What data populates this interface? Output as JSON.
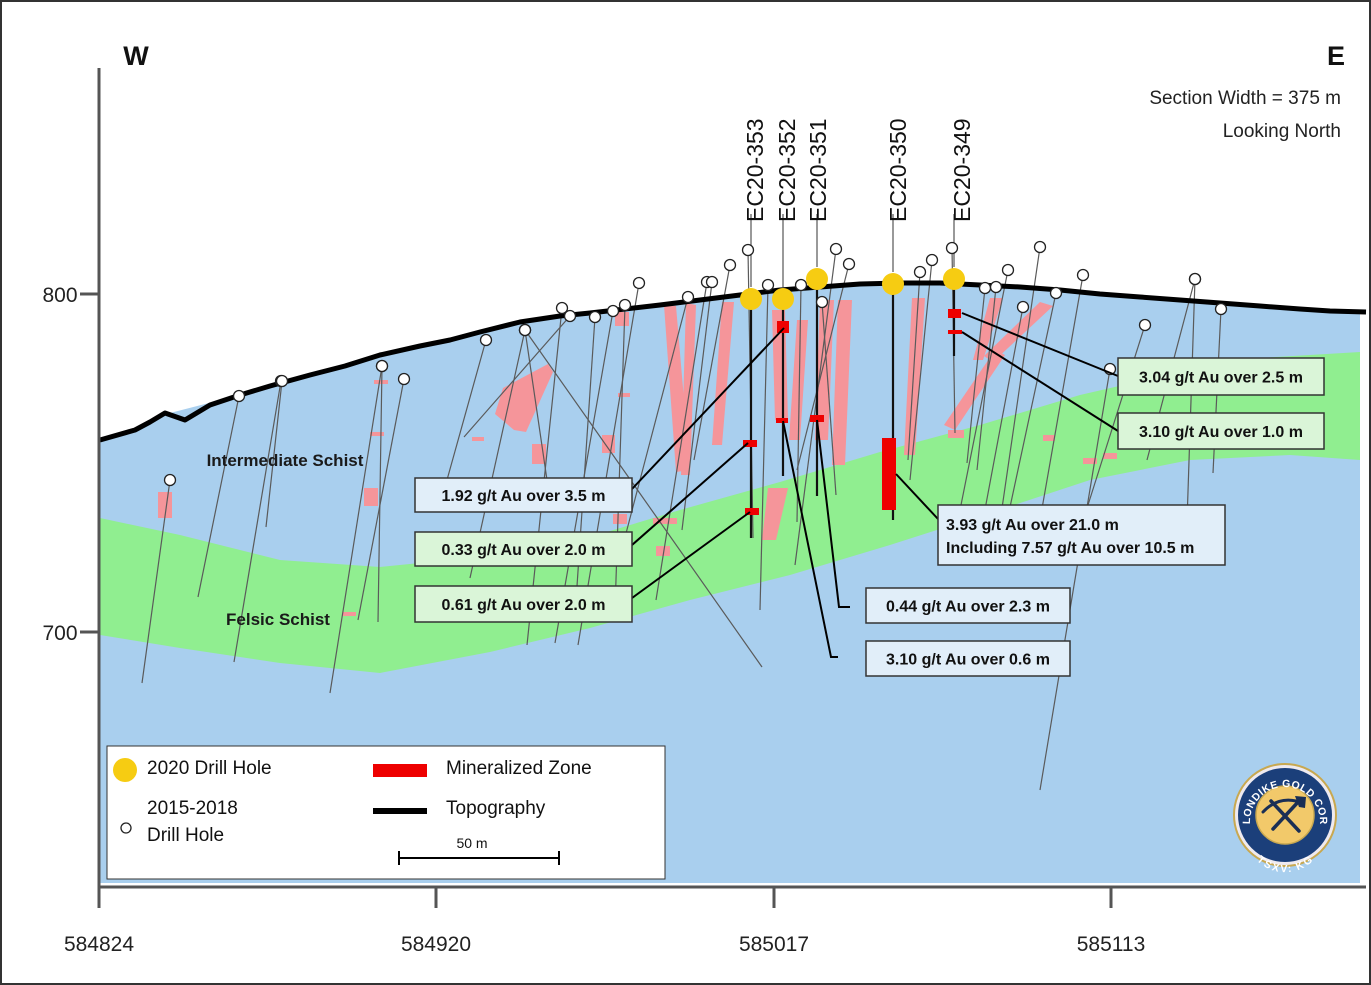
{
  "compass": {
    "west": "W",
    "east": "E"
  },
  "section_info": {
    "width": "Section Width = 375 m",
    "orientation": "Looking North"
  },
  "y_ticks": [
    "800",
    "700"
  ],
  "x_ticks": [
    "584824",
    "584920",
    "585017",
    "585113"
  ],
  "units": {
    "intermediate": "Intermediate Schist",
    "felsic": "Felsic Schist"
  },
  "hole_ids": [
    "EC20-353",
    "EC20-352",
    "EC20-351",
    "EC20-350",
    "EC20-349"
  ],
  "callouts": [
    {
      "lines": [
        "1.92 g/t Au over 3.5 m"
      ],
      "style": "blue"
    },
    {
      "lines": [
        "0.33 g/t Au over 2.0 m"
      ],
      "style": "green"
    },
    {
      "lines": [
        "0.61 g/t Au over 2.0 m"
      ],
      "style": "green"
    },
    {
      "lines": [
        "0.44 g/t Au over 2.3 m"
      ],
      "style": "blue"
    },
    {
      "lines": [
        "3.10 g/t Au over 0.6 m"
      ],
      "style": "blue"
    },
    {
      "lines": [
        "3.93 g/t Au over 21.0 m",
        "Including 7.57 g/t Au over 10.5 m"
      ],
      "style": "blue"
    },
    {
      "lines": [
        "3.04 g/t Au over 2.5 m"
      ],
      "style": "green"
    },
    {
      "lines": [
        "3.10 g/t Au over 1.0 m"
      ],
      "style": "green"
    }
  ],
  "legend": {
    "drill_2020": "2020 Drill Hole",
    "drill_old_line1": "2015-2018",
    "drill_old_line2": "Drill Hole",
    "mineralized": "Mineralized Zone",
    "topography": "Topography",
    "scale": "50 m"
  },
  "logo": {
    "top": "KLONDIKE GOLD CORP",
    "bottom": "TSXV: KG"
  },
  "colors": {
    "country_rock": "#a9cfee",
    "felsic": "#90ee90",
    "alteration": "#f5959a",
    "mineralized": "#ee0000",
    "topography": "#000000",
    "drill_2020": "#f6cc12",
    "callout_blue": "#e1eef9",
    "callout_green": "#daf5d8"
  }
}
